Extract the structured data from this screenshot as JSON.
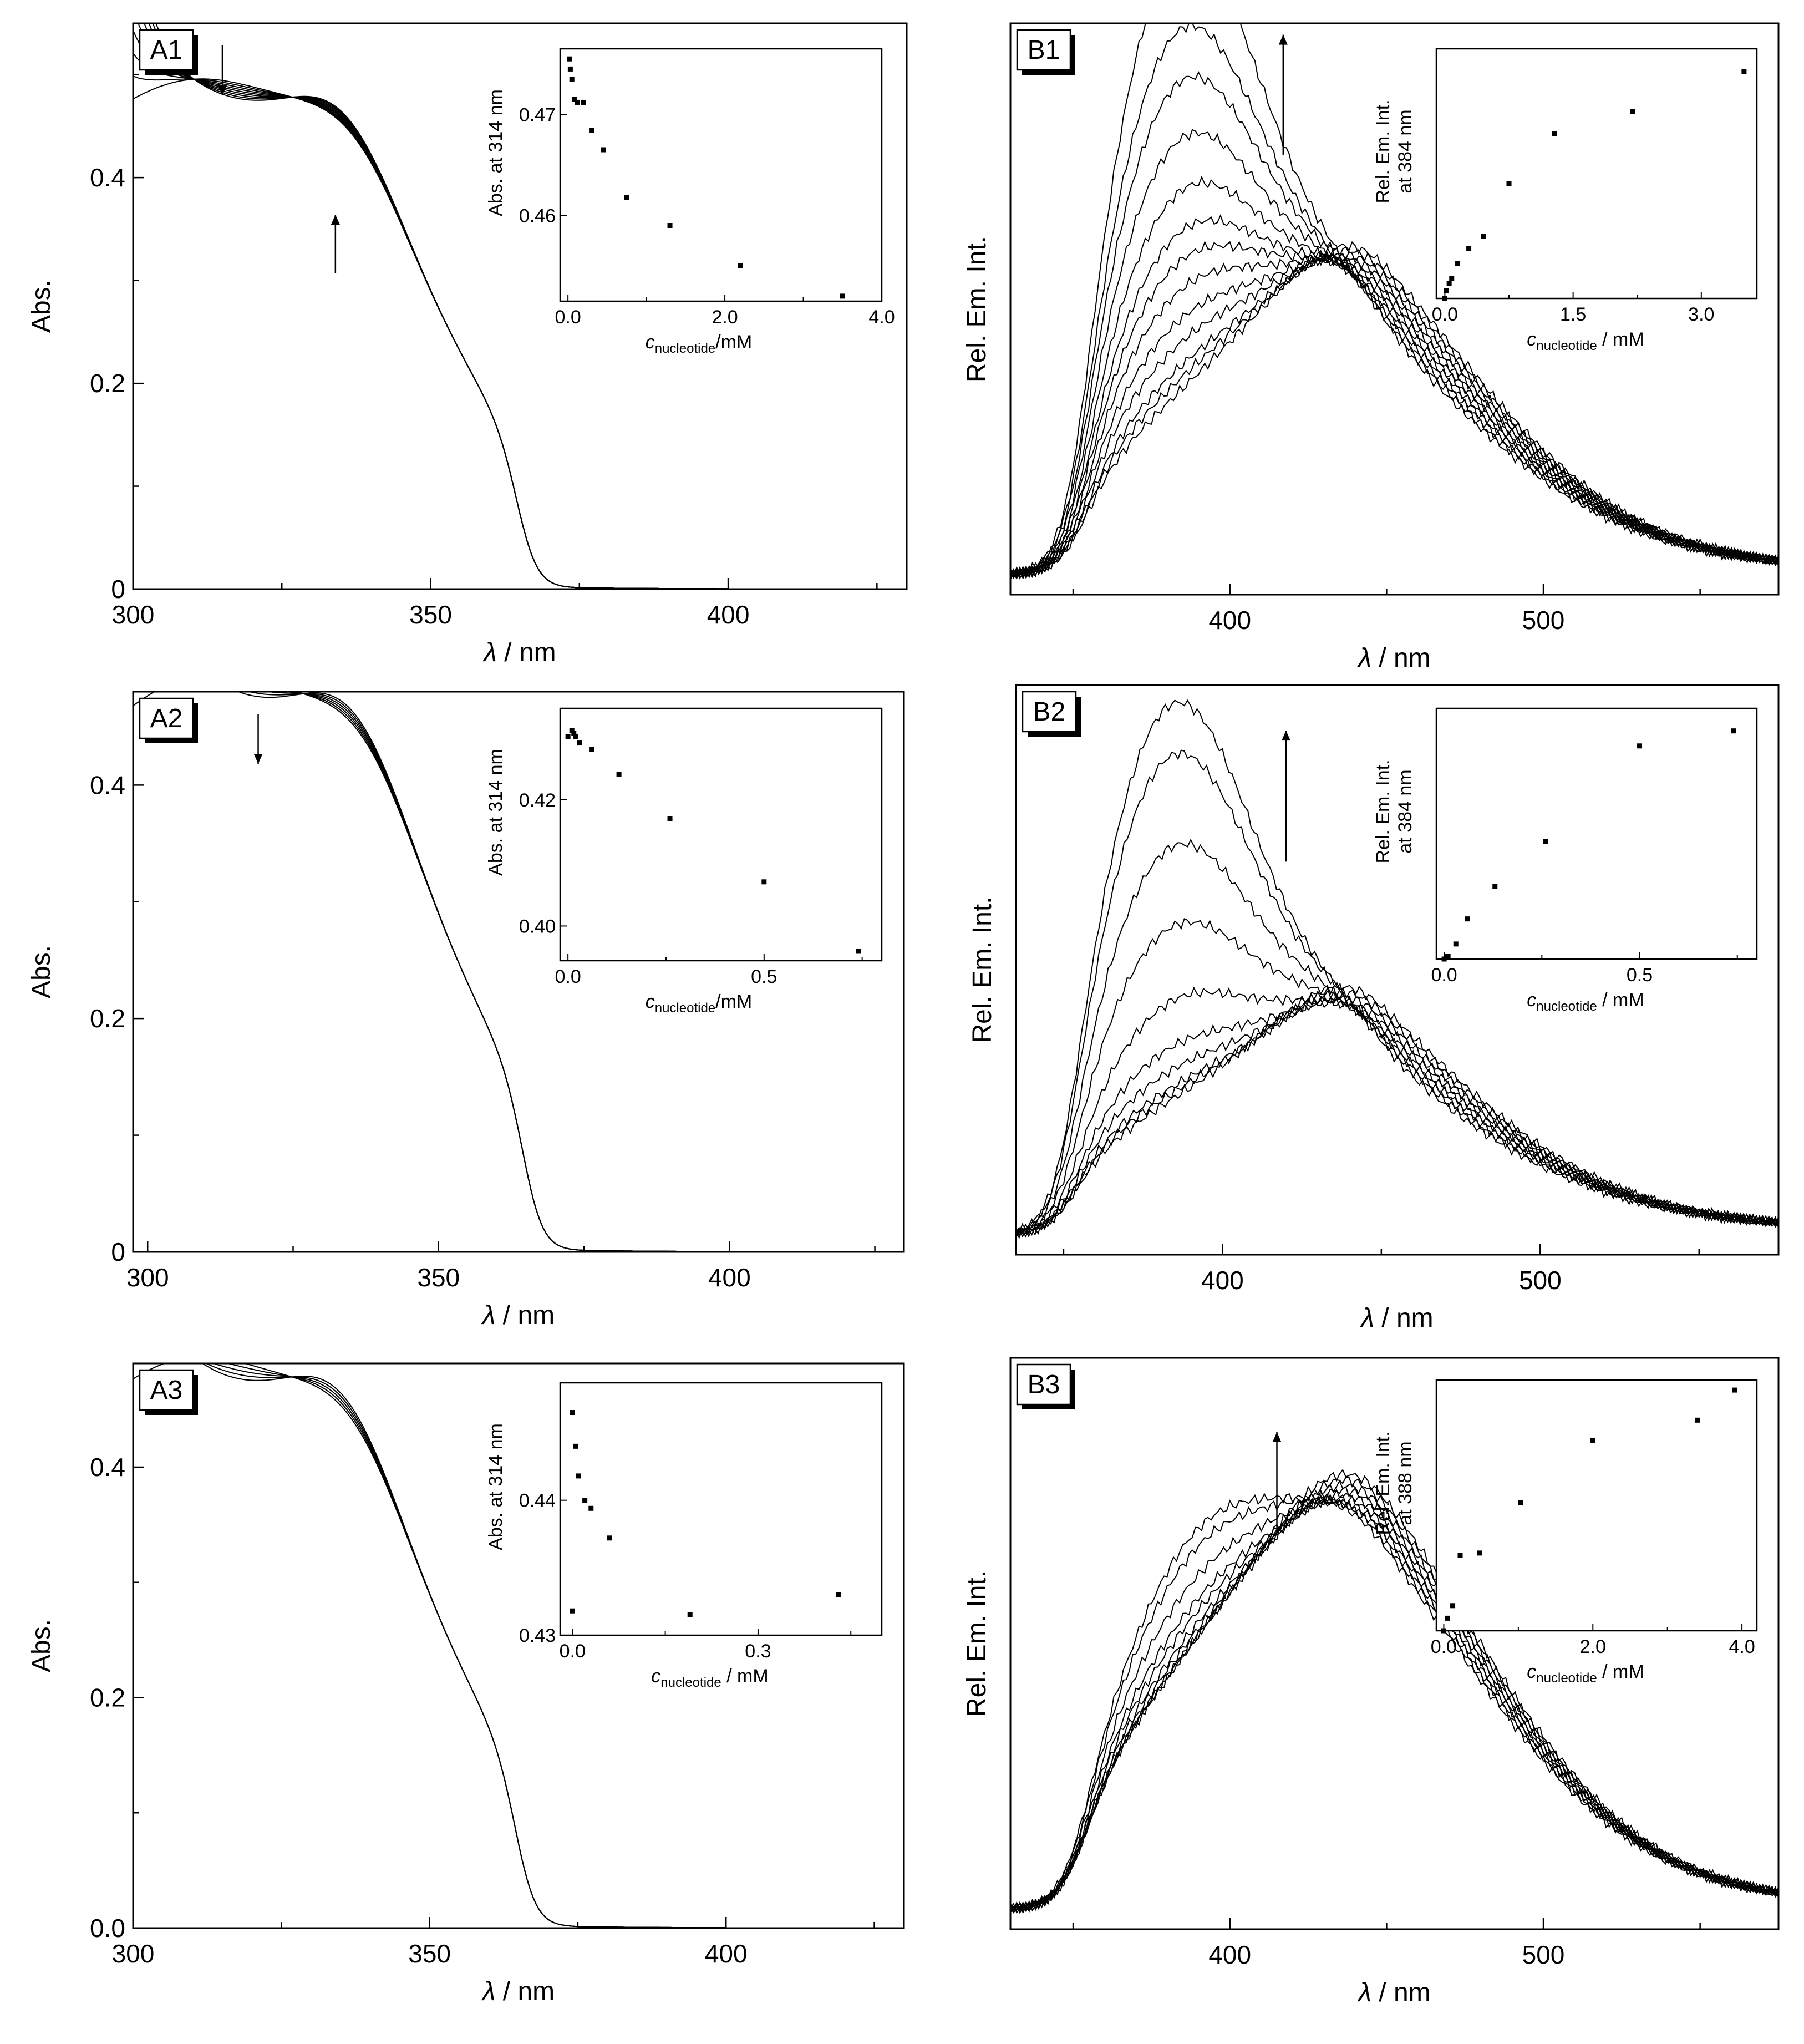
{
  "chart_data": [
    {
      "id": "A1",
      "type": "line",
      "panel_label": "A1",
      "xlabel_symbol": "λ",
      "xlabel_unit": " / nm",
      "ylabel": "Abs.",
      "xlim": [
        300,
        430
      ],
      "ylim": [
        0,
        0.55
      ],
      "xticks": [
        300,
        350,
        400
      ],
      "xtick_labels": [
        "300",
        "350",
        "400"
      ],
      "yticks": [
        0,
        0.2,
        0.4
      ],
      "ytick_labels": [
        "0",
        "0.2",
        "0.4"
      ],
      "spectrum": "abs",
      "curves": 9,
      "red_end": 400,
      "arrows": [
        {
          "x": 315,
          "dir": "down"
        },
        {
          "x": 334,
          "dir": "up"
        }
      ],
      "inset": {
        "ylabel": "Abs. at 314 nm",
        "xsub": "nucleotide",
        "xunit": "/mM",
        "xlim": [
          -0.1,
          4.0
        ],
        "ylim": [
          0.4515,
          0.4765
        ],
        "xticks": [
          0,
          2.0,
          4.0
        ],
        "xtick_labels": [
          "0.0",
          "2.0",
          "4.0"
        ],
        "yticks": [
          0.46,
          0.47
        ],
        "ytick_labels": [
          "0.46",
          "0.47"
        ],
        "points": [
          [
            0.02,
            0.4755
          ],
          [
            0.03,
            0.4745
          ],
          [
            0.05,
            0.4735
          ],
          [
            0.08,
            0.4715
          ],
          [
            0.12,
            0.4712
          ],
          [
            0.2,
            0.4712
          ],
          [
            0.3,
            0.4684
          ],
          [
            0.45,
            0.4665
          ],
          [
            0.75,
            0.4618
          ],
          [
            1.3,
            0.459
          ],
          [
            2.2,
            0.455
          ],
          [
            3.5,
            0.452
          ]
        ]
      }
    },
    {
      "id": "B1",
      "type": "line",
      "panel_label": "B1",
      "xlabel_symbol": "λ",
      "xlabel_unit": " / nm",
      "ylabel": "Rel. Em. Int.",
      "xlim": [
        330,
        575
      ],
      "ylim": [
        0,
        1.0
      ],
      "xticks": [
        400,
        500
      ],
      "xtick_labels": [
        "400",
        "500"
      ],
      "yticks": [],
      "ytick_labels": [],
      "spectrum": "em",
      "peak": 384,
      "amps": [
        0.88,
        0.73,
        0.63,
        0.52,
        0.42,
        0.34,
        0.28,
        0.22,
        0.16,
        0.11,
        0.06,
        0.03,
        0.0
      ],
      "base_amp": 0.32,
      "base_center": 425,
      "arrows": [
        {
          "x": 417,
          "dir": "up",
          "y1": 0.77,
          "y2": 0.98
        }
      ],
      "inset": {
        "ylabel": "Rel. Em. Int.",
        "ylabel2": "at 384 nm",
        "xsub": "nucleotide",
        "xunit": " / mM",
        "xlim": [
          -0.1,
          3.65
        ],
        "ylim": [
          0,
          1.0
        ],
        "xticks": [
          0,
          1.5,
          3.0
        ],
        "xtick_labels": [
          "0.0",
          "1.5",
          "3.0"
        ],
        "yticks": [],
        "ytick_labels": [],
        "points": [
          [
            0.0,
            0.0
          ],
          [
            0.02,
            0.03
          ],
          [
            0.05,
            0.06
          ],
          [
            0.08,
            0.08
          ],
          [
            0.15,
            0.14
          ],
          [
            0.28,
            0.2
          ],
          [
            0.45,
            0.25
          ],
          [
            0.75,
            0.46
          ],
          [
            1.28,
            0.66
          ],
          [
            2.2,
            0.75
          ],
          [
            3.5,
            0.91
          ]
        ]
      }
    },
    {
      "id": "A2",
      "type": "line",
      "panel_label": "A2",
      "xlabel_symbol": "λ",
      "xlabel_unit": " / nm",
      "ylabel": "Abs.",
      "xlim": [
        297.5,
        430
      ],
      "ylim": [
        0,
        0.48
      ],
      "xticks": [
        300,
        350,
        400
      ],
      "xtick_labels": [
        "300",
        "350",
        "400"
      ],
      "yticks": [
        0,
        0.2,
        0.4
      ],
      "ytick_labels": [
        "0",
        "0.2",
        "0.4"
      ],
      "spectrum": "abs",
      "curves": 6,
      "red_end": 400,
      "arrows": [
        {
          "x": 319,
          "dir": "down"
        }
      ],
      "inset": {
        "ylabel": "Abs. at 314 nm",
        "xsub": "nucleotide",
        "xunit": "/mM",
        "xlim": [
          -0.02,
          0.8
        ],
        "ylim": [
          0.3945,
          0.4345
        ],
        "xticks": [
          0,
          0.5
        ],
        "xtick_labels": [
          "0.0",
          "0.5"
        ],
        "yticks": [
          0.4,
          0.42
        ],
        "ytick_labels": [
          "0.40",
          "0.42"
        ],
        "points": [
          [
            0.0,
            0.43
          ],
          [
            0.01,
            0.431
          ],
          [
            0.015,
            0.4305
          ],
          [
            0.02,
            0.43
          ],
          [
            0.03,
            0.429
          ],
          [
            0.06,
            0.428
          ],
          [
            0.13,
            0.424
          ],
          [
            0.26,
            0.417
          ],
          [
            0.5,
            0.407
          ],
          [
            0.74,
            0.396
          ]
        ]
      }
    },
    {
      "id": "B2",
      "type": "line",
      "panel_label": "B2",
      "xlabel_symbol": "λ",
      "xlabel_unit": " / nm",
      "ylabel": "Rel. Em. Int.",
      "xlim": [
        335,
        575
      ],
      "ylim": [
        0,
        1.0
      ],
      "xticks": [
        400,
        500
      ],
      "xtick_labels": [
        "400",
        "500"
      ],
      "yticks": [],
      "ytick_labels": [],
      "spectrum": "em",
      "peak": 384,
      "amps": [
        0.78,
        0.68,
        0.51,
        0.36,
        0.22,
        0.13,
        0.08,
        0.04,
        0.02,
        0.0
      ],
      "base_amp": 0.22,
      "base_center": 420,
      "arrows": [
        {
          "x": 420,
          "dir": "up",
          "y1": 0.69,
          "y2": 0.92
        }
      ],
      "inset": {
        "ylabel": "Rel. Em. Int.",
        "ylabel2": "at 384 nm",
        "xsub": "nucleotide",
        "xunit": " / mM",
        "xlim": [
          -0.02,
          0.8
        ],
        "ylim": [
          0,
          1.0
        ],
        "xticks": [
          0,
          0.5
        ],
        "xtick_labels": [
          "0.0",
          "0.5"
        ],
        "yticks": [],
        "ytick_labels": [],
        "points": [
          [
            0.0,
            0.0
          ],
          [
            0.005,
            0.01
          ],
          [
            0.01,
            0.01
          ],
          [
            0.03,
            0.06
          ],
          [
            0.06,
            0.16
          ],
          [
            0.13,
            0.29
          ],
          [
            0.26,
            0.47
          ],
          [
            0.5,
            0.85
          ],
          [
            0.74,
            0.91
          ]
        ]
      }
    },
    {
      "id": "A3",
      "type": "line",
      "panel_label": "A3",
      "xlabel_symbol": "λ",
      "xlabel_unit": " / nm",
      "ylabel": "Abs.",
      "xlim": [
        300,
        430
      ],
      "ylim": [
        0,
        0.49
      ],
      "xticks": [
        300,
        350,
        400
      ],
      "xtick_labels": [
        "300",
        "350",
        "400"
      ],
      "yticks": [
        0,
        0.2,
        0.4
      ],
      "ytick_labels": [
        "0.0",
        "0.2",
        "0.4"
      ],
      "spectrum": "abs",
      "curves": 5,
      "red_end": 400,
      "arrows": [],
      "inset": {
        "ylabel": "Abs. at 314 nm",
        "xsub": "nucleotide",
        "xunit": " / mM",
        "xlim": [
          -0.02,
          0.5
        ],
        "ylim": [
          0.43,
          0.4487
        ],
        "xticks": [
          0,
          0.3
        ],
        "xtick_labels": [
          "0.0",
          "0.3"
        ],
        "yticks": [
          0.43,
          0.44
        ],
        "ytick_labels": [
          "0.43",
          "0.44"
        ],
        "points": [
          [
            0.0,
            0.4465
          ],
          [
            0.005,
            0.444
          ],
          [
            0.01,
            0.4418
          ],
          [
            0.02,
            0.44
          ],
          [
            0.03,
            0.4394
          ],
          [
            0.06,
            0.4372
          ],
          [
            0.0,
            0.4318
          ],
          [
            0.19,
            0.4315
          ],
          [
            0.43,
            0.433
          ]
        ]
      }
    },
    {
      "id": "B3",
      "type": "line",
      "panel_label": "B3",
      "xlabel_symbol": "λ",
      "xlabel_unit": " / nm",
      "ylabel": "Rel. Em. Int.",
      "xlim": [
        330,
        575
      ],
      "ylim": [
        0,
        1.0
      ],
      "xticks": [
        400,
        500
      ],
      "xtick_labels": [
        "400",
        "500"
      ],
      "yticks": [],
      "ytick_labels": [],
      "spectrum": "em",
      "peak": 388,
      "amps": [
        0.27,
        0.23,
        0.17,
        0.12,
        0.09,
        0.06,
        0.04,
        0.02,
        0.01,
        0.0
      ],
      "base_amp": 0.54,
      "base_center": 428,
      "arrows": [
        {
          "x": 415,
          "dir": "up",
          "y1": 0.69,
          "y2": 0.87
        }
      ],
      "inset": {
        "ylabel": "Rel. Em. Int.",
        "ylabel2": "at 388 nm",
        "xsub": "nucleotide",
        "xunit": " / mM",
        "xlim": [
          -0.1,
          4.2
        ],
        "ylim": [
          0,
          1.0
        ],
        "xticks": [
          0,
          2.0,
          4.0
        ],
        "xtick_labels": [
          "0.0",
          "2.0",
          "4.0"
        ],
        "yticks": [],
        "ytick_labels": [],
        "points": [
          [
            0.0,
            0.0
          ],
          [
            0.05,
            0.05
          ],
          [
            0.12,
            0.1
          ],
          [
            0.22,
            0.3
          ],
          [
            0.48,
            0.31
          ],
          [
            1.03,
            0.51
          ],
          [
            2.0,
            0.76
          ],
          [
            3.4,
            0.84
          ],
          [
            3.9,
            0.96
          ]
        ]
      }
    }
  ]
}
